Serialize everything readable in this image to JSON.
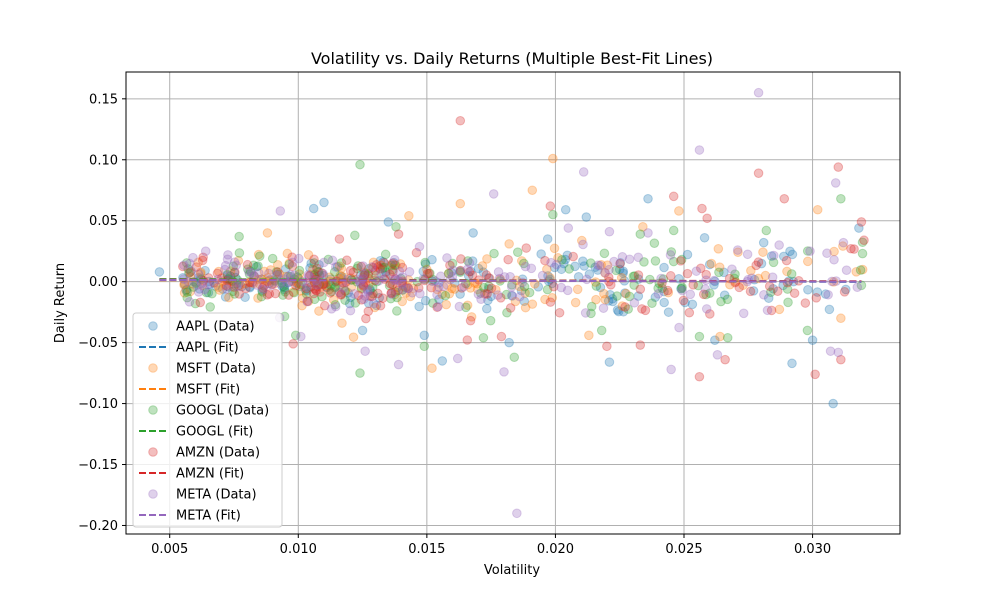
{
  "chart_data": {
    "type": "scatter",
    "title": "Volatility vs. Daily Returns (Multiple Best-Fit Lines)",
    "xlabel": "Volatility",
    "ylabel": "Daily Return",
    "xlim": [
      0.0033,
      0.0334
    ],
    "ylim": [
      -0.207,
      0.172
    ],
    "x_ticks": [
      0.005,
      0.01,
      0.015,
      0.02,
      0.025,
      0.03
    ],
    "x_tick_labels": [
      "0.005",
      "0.010",
      "0.015",
      "0.020",
      "0.025",
      "0.030"
    ],
    "y_ticks": [
      0.15,
      0.1,
      0.05,
      0.0,
      -0.05,
      -0.1,
      -0.15,
      -0.2
    ],
    "y_tick_labels": [
      "0.15",
      "0.10",
      "0.05",
      "0.00",
      "−0.05",
      "−0.10",
      "−0.15",
      "−0.20"
    ],
    "grid": true,
    "legend_position": "lower-left",
    "series": [
      {
        "name": "AAPL",
        "data_label": "AAPL (Data)",
        "fit_label": "AAPL (Fit)",
        "color": "#1f77b4",
        "fit": {
          "x": [
            0.0046,
            0.0319
          ],
          "y": [
            0.0019,
            -0.0002
          ]
        },
        "points": [
          [
            0.0046,
            0.008
          ],
          [
            0.0062,
            0.003
          ],
          [
            0.0078,
            -0.004
          ],
          [
            0.0092,
            0.006
          ],
          [
            0.0105,
            0.015
          ],
          [
            0.0106,
            0.06
          ],
          [
            0.011,
            0.065
          ],
          [
            0.0125,
            -0.04
          ],
          [
            0.0135,
            0.049
          ],
          [
            0.0149,
            -0.044
          ],
          [
            0.0152,
            0.018
          ],
          [
            0.0156,
            -0.065
          ],
          [
            0.0168,
            0.04
          ],
          [
            0.0182,
            -0.05
          ],
          [
            0.0197,
            0.035
          ],
          [
            0.0204,
            0.059
          ],
          [
            0.0212,
            0.053
          ],
          [
            0.0221,
            -0.066
          ],
          [
            0.0236,
            0.068
          ],
          [
            0.0244,
            -0.025
          ],
          [
            0.0258,
            0.036
          ],
          [
            0.0262,
            -0.048
          ],
          [
            0.0281,
            0.032
          ],
          [
            0.0292,
            -0.067
          ],
          [
            0.03,
            -0.048
          ],
          [
            0.0308,
            -0.1
          ],
          [
            0.0318,
            0.044
          ],
          [
            0.0225,
            0.01
          ],
          [
            0.0175,
            -0.012
          ],
          [
            0.012,
            -0.018
          ]
        ]
      },
      {
        "name": "MSFT",
        "data_label": "MSFT (Data)",
        "fit_label": "MSFT (Fit)",
        "color": "#ff7f0e",
        "fit": {
          "x": [
            0.0046,
            0.0319
          ],
          "y": [
            0.0012,
            0.0001
          ]
        },
        "points": [
          [
            0.0058,
            -0.008
          ],
          [
            0.0073,
            -0.013
          ],
          [
            0.0088,
            0.04
          ],
          [
            0.0117,
            -0.034
          ],
          [
            0.0143,
            0.054
          ],
          [
            0.0152,
            -0.071
          ],
          [
            0.0163,
            0.064
          ],
          [
            0.0191,
            0.075
          ],
          [
            0.0199,
            0.101
          ],
          [
            0.0213,
            -0.044
          ],
          [
            0.0234,
            0.045
          ],
          [
            0.0248,
            0.058
          ],
          [
            0.0264,
            -0.045
          ],
          [
            0.0276,
            0.009
          ],
          [
            0.0302,
            0.059
          ],
          [
            0.0311,
            -0.03
          ],
          [
            0.015,
            0.01
          ],
          [
            0.0226,
            -0.02
          ],
          [
            0.0104,
            0.022
          ],
          [
            0.0182,
            0.031
          ]
        ]
      },
      {
        "name": "GOOGL",
        "data_label": "GOOGL (Data)",
        "fit_label": "GOOGL (Fit)",
        "color": "#2ca02c",
        "fit": {
          "x": [
            0.0046,
            0.0319
          ],
          "y": [
            0.0021,
            0.0001
          ]
        },
        "points": [
          [
            0.006,
            -0.018
          ],
          [
            0.0077,
            0.037
          ],
          [
            0.0099,
            -0.044
          ],
          [
            0.0122,
            0.038
          ],
          [
            0.0124,
            0.096
          ],
          [
            0.0124,
            -0.075
          ],
          [
            0.0138,
            0.045
          ],
          [
            0.0149,
            -0.053
          ],
          [
            0.0172,
            -0.046
          ],
          [
            0.0184,
            -0.062
          ],
          [
            0.0199,
            0.055
          ],
          [
            0.0218,
            -0.04
          ],
          [
            0.0233,
            0.039
          ],
          [
            0.0246,
            0.042
          ],
          [
            0.0256,
            -0.045
          ],
          [
            0.0267,
            -0.046
          ],
          [
            0.0282,
            0.042
          ],
          [
            0.0298,
            -0.04
          ],
          [
            0.0311,
            0.068
          ],
          [
            0.0319,
            -0.003
          ],
          [
            0.0108,
            0.008
          ],
          [
            0.016,
            0.015
          ]
        ]
      },
      {
        "name": "AMZN",
        "data_label": "AMZN (Data)",
        "fit_label": "AMZN (Fit)",
        "color": "#d62728",
        "fit": {
          "x": [
            0.0046,
            0.0319
          ],
          "y": [
            0.0016,
            0.0003
          ]
        },
        "points": [
          [
            0.0063,
            0.02
          ],
          [
            0.0098,
            -0.051
          ],
          [
            0.0116,
            0.035
          ],
          [
            0.0139,
            0.039
          ],
          [
            0.0154,
            -0.021
          ],
          [
            0.0163,
            0.132
          ],
          [
            0.0167,
            -0.032
          ],
          [
            0.0179,
            -0.045
          ],
          [
            0.0198,
            0.062
          ],
          [
            0.022,
            -0.053
          ],
          [
            0.0233,
            -0.052
          ],
          [
            0.0246,
            0.07
          ],
          [
            0.0256,
            -0.078
          ],
          [
            0.0257,
            0.06
          ],
          [
            0.0259,
            0.052
          ],
          [
            0.0266,
            -0.064
          ],
          [
            0.0279,
            0.089
          ],
          [
            0.0289,
            0.068
          ],
          [
            0.0301,
            -0.076
          ],
          [
            0.031,
            0.094
          ],
          [
            0.0311,
            -0.064
          ],
          [
            0.0319,
            0.049
          ],
          [
            0.032,
            0.034
          ],
          [
            0.0128,
            -0.012
          ]
        ]
      },
      {
        "name": "META",
        "data_label": "META (Data)",
        "fit_label": "META (Fit)",
        "color": "#9467bd",
        "fit": {
          "x": [
            0.0046,
            0.0319
          ],
          "y": [
            0.0014,
            0.0
          ]
        },
        "points": [
          [
            0.0064,
            0.025
          ],
          [
            0.0093,
            0.058
          ],
          [
            0.0101,
            -0.045
          ],
          [
            0.0126,
            -0.057
          ],
          [
            0.0139,
            -0.068
          ],
          [
            0.0162,
            -0.063
          ],
          [
            0.0176,
            0.072
          ],
          [
            0.018,
            -0.074
          ],
          [
            0.0185,
            -0.19
          ],
          [
            0.0205,
            0.044
          ],
          [
            0.0211,
            0.09
          ],
          [
            0.0221,
            0.041
          ],
          [
            0.0236,
            0.04
          ],
          [
            0.0245,
            -0.072
          ],
          [
            0.0256,
            0.108
          ],
          [
            0.0263,
            -0.06
          ],
          [
            0.0279,
            0.155
          ],
          [
            0.0287,
            0.03
          ],
          [
            0.0299,
            0.025
          ],
          [
            0.0307,
            -0.057
          ],
          [
            0.0309,
            0.081
          ],
          [
            0.031,
            -0.058
          ],
          [
            0.0312,
            0.032
          ],
          [
            0.024,
            -0.01
          ],
          [
            0.0195,
            0.005
          ]
        ]
      }
    ]
  }
}
